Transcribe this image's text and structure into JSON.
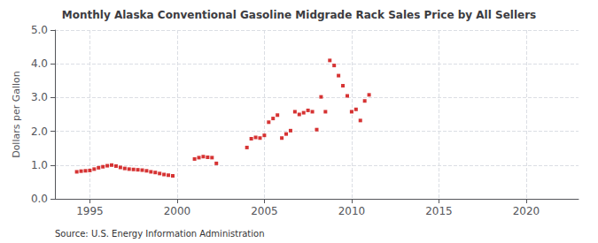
{
  "chart_data": {
    "type": "scatter",
    "title": "Monthly Alaska Conventional Gasoline Midgrade Rack Sales Price by All Sellers",
    "ylabel": "Dollars per Gallon",
    "source": "Source: U.S. Energy Information Administration",
    "color": "#cc0000",
    "marker": "square",
    "grid": true,
    "xlim": [
      1993.0,
      2023.0
    ],
    "ylim": [
      0.0,
      5.0
    ],
    "xticks": [
      1995,
      2000,
      2005,
      2010,
      2015,
      2020
    ],
    "yticks": [
      {
        "value": 0.0,
        "label": "0.0"
      },
      {
        "value": 1.0,
        "label": "1.0"
      },
      {
        "value": 2.0,
        "label": "2.0"
      },
      {
        "value": 3.0,
        "label": "3.0"
      },
      {
        "value": 4.0,
        "label": "4.0"
      },
      {
        "value": 5.0,
        "label": "5.0"
      }
    ],
    "x": [
      1994.25,
      1994.5,
      1994.75,
      1995.0,
      1995.25,
      1995.5,
      1995.75,
      1996.0,
      1996.25,
      1996.5,
      1996.75,
      1997.0,
      1997.25,
      1997.5,
      1997.75,
      1998.0,
      1998.25,
      1998.5,
      1998.75,
      1999.0,
      1999.25,
      1999.5,
      1999.75,
      2001.0,
      2001.25,
      2001.5,
      2001.75,
      2002.0,
      2002.25,
      2004.0,
      2004.25,
      2004.5,
      2004.75,
      2005.0,
      2005.25,
      2005.5,
      2005.75,
      2006.0,
      2006.25,
      2006.5,
      2006.75,
      2007.0,
      2007.25,
      2007.5,
      2007.75,
      2008.0,
      2008.25,
      2008.5,
      2008.75,
      2009.0,
      2009.25,
      2009.5,
      2009.75,
      2010.0,
      2010.25,
      2010.5,
      2010.75,
      2011.0
    ],
    "values": [
      0.8,
      0.82,
      0.83,
      0.84,
      0.88,
      0.92,
      0.95,
      0.98,
      1.0,
      0.97,
      0.93,
      0.9,
      0.88,
      0.87,
      0.86,
      0.85,
      0.83,
      0.8,
      0.78,
      0.75,
      0.72,
      0.7,
      0.68,
      1.18,
      1.22,
      1.25,
      1.23,
      1.22,
      1.05,
      1.52,
      1.78,
      1.82,
      1.8,
      1.88,
      2.27,
      2.38,
      2.48,
      1.8,
      1.92,
      2.02,
      2.58,
      2.5,
      2.55,
      2.62,
      2.58,
      2.05,
      3.02,
      2.58,
      4.1,
      3.95,
      3.65,
      3.35,
      3.05,
      2.58,
      2.65,
      2.32,
      2.9,
      3.08
    ]
  }
}
